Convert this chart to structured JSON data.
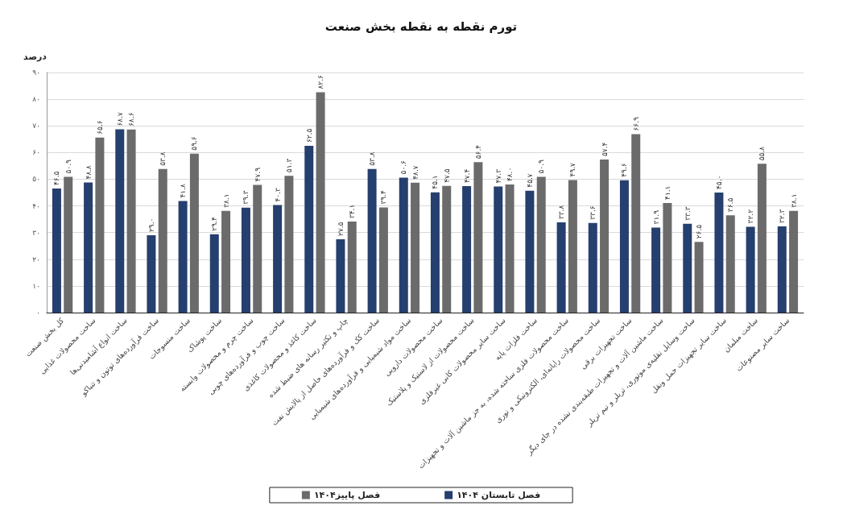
{
  "chart_data": {
    "type": "bar",
    "title": "تورم نقطه به نقطه بخش صنعت",
    "ylabel": "درصد",
    "categories": [
      "کل بخش صنعت",
      "ساخت محصولات غذایی",
      "ساخت انواع آشامیدنی‌ها",
      "ساخت فرآورده‌های توتون و تنباکو",
      "ساخت منسوجات",
      "ساخت پوشاک",
      "ساخت چرم و محصولات وابسته",
      "ساخت چوب و فرآورده‌های چوبی",
      "ساخت کاغذ و محصولات کاغذی",
      "چاپ و تکثیر رسانه های ضبط شده",
      "ساخت کک و فرآورده‌های حاصل از پالایش نفت",
      "ساخت مواد شیمیایی و فرآورده‌های شیمیایی",
      "ساخت محصولات دارویی",
      "ساخت محصولات از لاستیک و پلاستیک",
      "ساخت سایر محصولات کانی غیرفلزی",
      "ساخت فلزات پایه",
      "ساخت محصولات فلزی ساخته شده، به جز ماشین آلات و تجهیزات",
      "ساخت محصولات رایانه‌ای، الکترونیکی و نوری",
      "ساخت تجهیزات برقی",
      "ساخت ماشین آلات و تجهیزات طبقه‌بندی نشده در جای دیگر",
      "ساخت وسایل نقلیه‌ی موتوری، تریلر و نیم تریلر",
      "ساخت سایر تجهیزات حمل ونقل",
      "ساخت مبلمان",
      "ساخت سایر مصنوعات"
    ],
    "series": [
      {
        "name": "فصل تابستان ۱۴۰۴",
        "color": "#253f6e",
        "values": [
          46.5,
          48.8,
          68.7,
          29.0,
          41.8,
          29.4,
          39.3,
          40.3,
          62.5,
          27.5,
          53.8,
          50.6,
          45.1,
          47.4,
          47.3,
          45.7,
          33.8,
          33.6,
          49.6,
          31.9,
          33.3,
          45.0,
          32.2,
          32.3
        ],
        "value_labels": [
          "۴۶.۵",
          "۴۸.۸",
          "۶۸.۷",
          "۲۹.۰",
          "۴۱.۸",
          "۲۹.۴",
          "۳۹.۳",
          "۴۰.۳",
          "۶۲.۵",
          "۲۷.۵",
          "۵۳.۸",
          "۵۰.۶",
          "۴۵.۱",
          "۴۷.۴",
          "۴۷.۳",
          "۴۵.۷",
          "۳۳.۸",
          "۳۳.۶",
          "۴۹.۶",
          "۳۱.۹",
          "۳۳.۳",
          "۴۵.۰",
          "۳۲.۲",
          "۳۲.۳"
        ]
      },
      {
        "name": "فصل پاییز۱۴۰۴",
        "color": "#6b6b6b",
        "values": [
          50.9,
          65.6,
          68.6,
          53.8,
          59.6,
          38.1,
          47.9,
          51.3,
          82.6,
          34.1,
          39.4,
          48.7,
          47.5,
          56.4,
          48.0,
          50.9,
          49.7,
          57.4,
          66.9,
          41.1,
          26.5,
          36.5,
          55.8,
          38.1
        ],
        "value_labels": [
          "۵۰.۹",
          "۶۵.۶",
          "۶۸.۶",
          "۵۳.۸",
          "۵۹.۶",
          "۳۸.۱",
          "۴۷.۹",
          "۵۱.۳",
          "۸۲.۶",
          "۳۴.۱",
          "۳۹.۴",
          "۴۸.۷",
          "۴۷.۵",
          "۵۶.۴",
          "۴۸.۰",
          "۵۰.۹",
          "۴۹.۷",
          "۵۷.۴",
          "۶۶.۹",
          "۴۱.۱",
          "۲۶.۵",
          "۳۶.۵",
          "۵۵.۸",
          "۳۸.۱"
        ]
      }
    ],
    "ylim": [
      0,
      90
    ],
    "yticks": [
      {
        "value": 0,
        "label": "۰"
      },
      {
        "value": 10,
        "label": "۱۰"
      },
      {
        "value": 20,
        "label": "۲۰"
      },
      {
        "value": 30,
        "label": "۳۰"
      },
      {
        "value": 40,
        "label": "۴۰"
      },
      {
        "value": 50,
        "label": "۵۰"
      },
      {
        "value": 60,
        "label": "۶۰"
      },
      {
        "value": 70,
        "label": "۷۰"
      },
      {
        "value": 80,
        "label": "۸۰"
      },
      {
        "value": 90,
        "label": "۹۰"
      }
    ],
    "grid": "y",
    "legend": "bottom"
  }
}
